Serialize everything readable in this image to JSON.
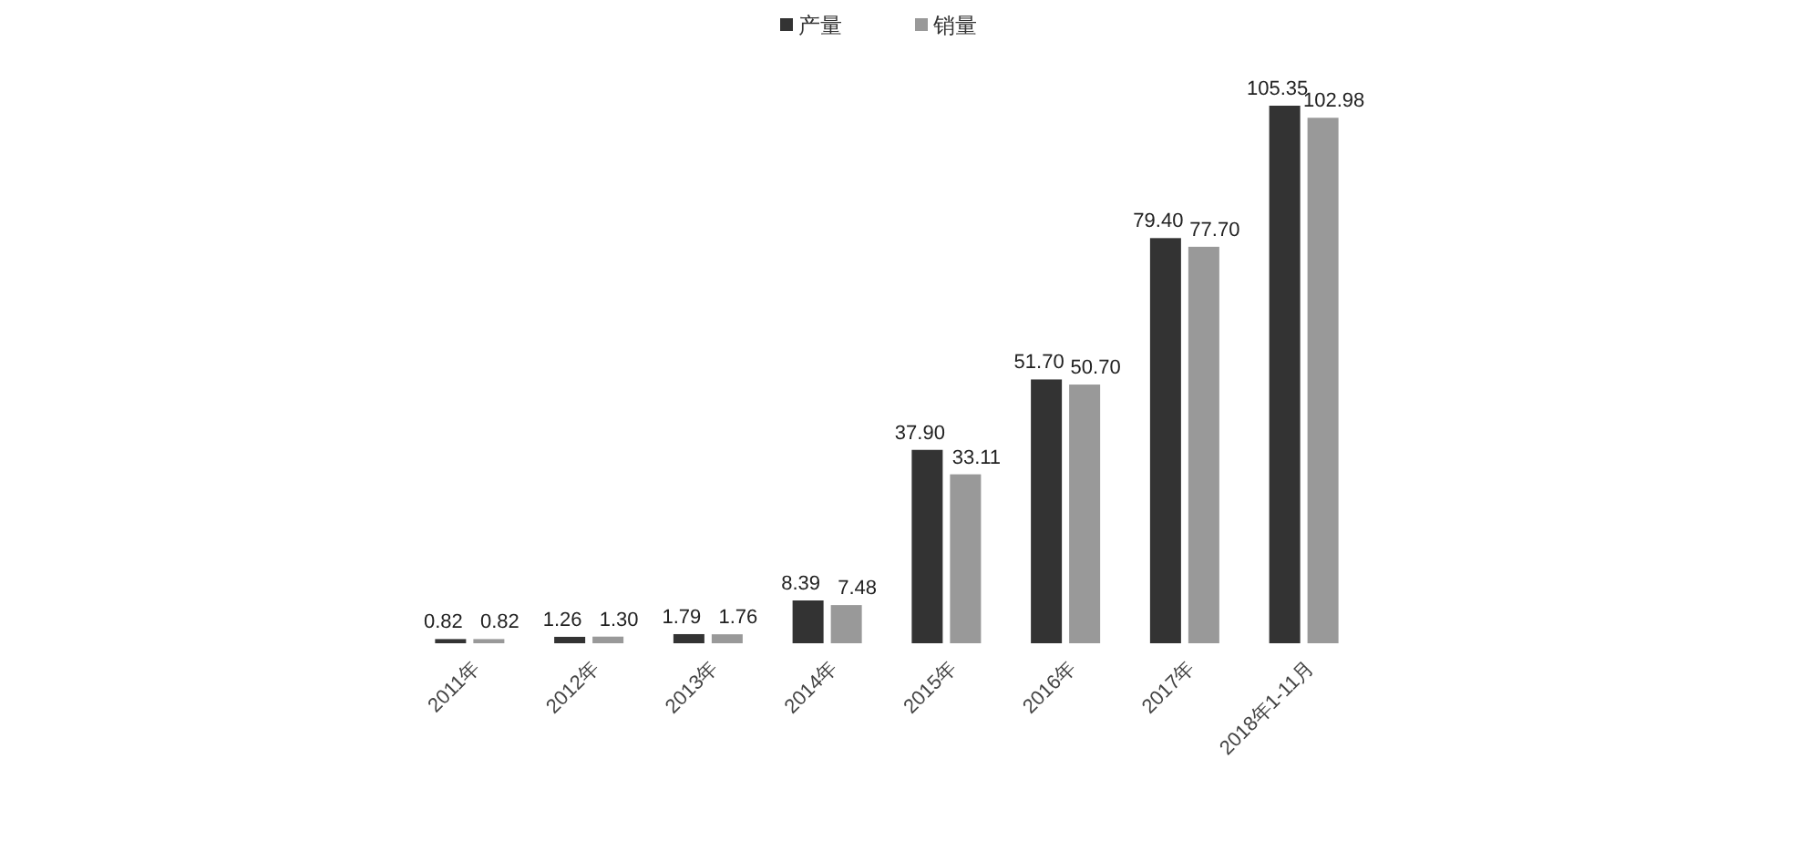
{
  "chart_data": {
    "type": "bar",
    "categories": [
      "2011年",
      "2012年",
      "2013年",
      "2014年",
      "2015年",
      "2016年",
      "2017年",
      "2018年1-11月"
    ],
    "series": [
      {
        "name": "产量",
        "color": "#333333",
        "values": [
          0.82,
          1.26,
          1.79,
          8.39,
          37.9,
          51.7,
          79.4,
          105.35
        ],
        "value_labels": [
          "0.82",
          "1.26",
          "1.79",
          "8.39",
          "37.90",
          "51.70",
          "79.40",
          "105.35"
        ]
      },
      {
        "name": "销量",
        "color": "#999999",
        "values": [
          0.82,
          1.3,
          1.76,
          7.48,
          33.11,
          50.7,
          77.7,
          102.98
        ],
        "value_labels": [
          "0.82",
          "1.30",
          "1.76",
          "7.48",
          "33.11",
          "50.70",
          "77.70",
          "102.98"
        ]
      }
    ],
    "legend": "top"
  }
}
